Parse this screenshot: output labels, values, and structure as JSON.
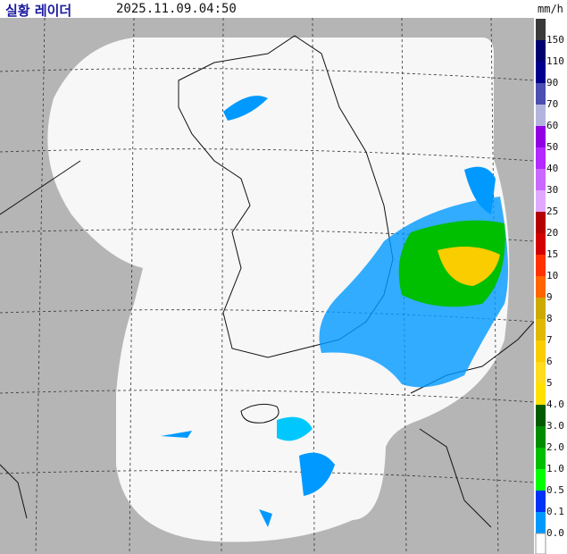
{
  "header": {
    "title": "실황 레이더",
    "time": "2025.11.09.04:50",
    "unit": "mm/h"
  },
  "legend": {
    "top_color": "#3a3a3a",
    "items": [
      {
        "label": "150",
        "color": "#000070"
      },
      {
        "label": "110",
        "color": "#00008c"
      },
      {
        "label": "90",
        "color": "#4c4eb1"
      },
      {
        "label": "70",
        "color": "#b3b4de"
      },
      {
        "label": "60",
        "color": "#9300e4"
      },
      {
        "label": "50",
        "color": "#b329ff"
      },
      {
        "label": "40",
        "color": "#c969ff"
      },
      {
        "label": "30",
        "color": "#e0a9ff"
      },
      {
        "label": "25",
        "color": "#b40000"
      },
      {
        "label": "20",
        "color": "#d20000"
      },
      {
        "label": "15",
        "color": "#ff3200"
      },
      {
        "label": "10",
        "color": "#ff6600"
      },
      {
        "label": "9",
        "color": "#ccaa00"
      },
      {
        "label": "8",
        "color": "#e0b900"
      },
      {
        "label": "7",
        "color": "#f9cd00"
      },
      {
        "label": "6",
        "color": "#ffdc1f"
      },
      {
        "label": "5",
        "color": "#ffe100"
      },
      {
        "label": "4.0",
        "color": "#005a00"
      },
      {
        "label": "3.0",
        "color": "#008c00"
      },
      {
        "label": "2.0",
        "color": "#00be00"
      },
      {
        "label": "1.0",
        "color": "#00ff00"
      },
      {
        "label": "0.5",
        "color": "#0033f5"
      },
      {
        "label": "0.1",
        "color": "#0099ff"
      },
      {
        "label": "0.0",
        "color": "#ffffff"
      }
    ]
  }
}
